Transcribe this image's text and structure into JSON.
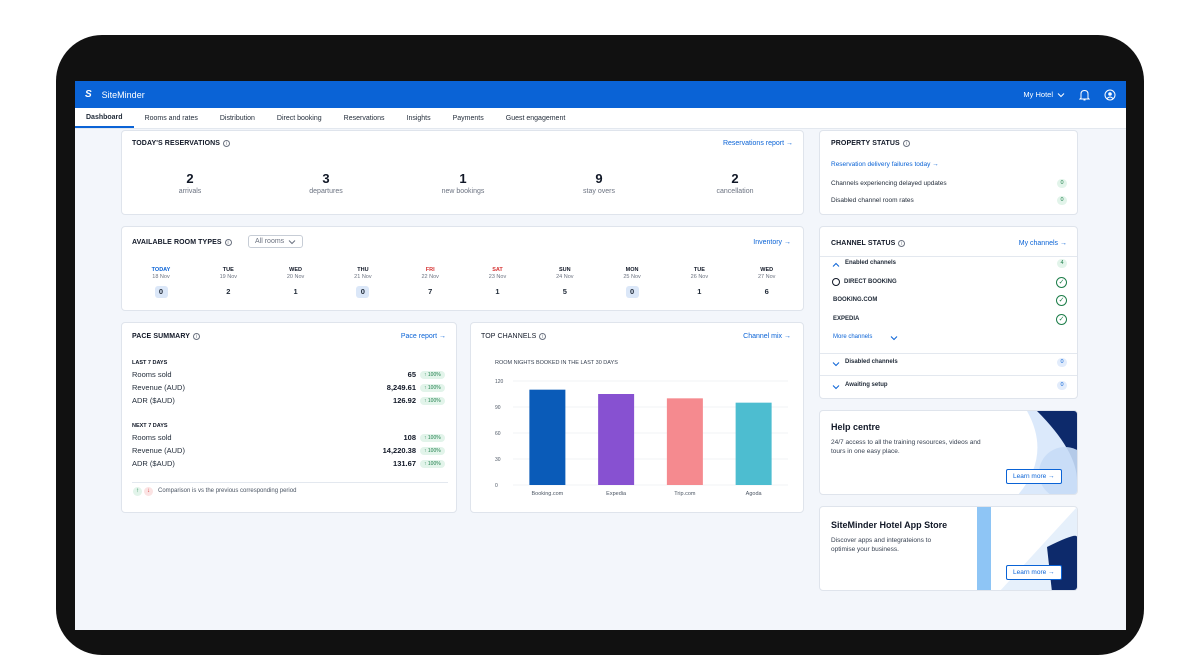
{
  "app": {
    "name": "SiteMinder",
    "logo": "S",
    "hotel_selector": "My Hotel"
  },
  "nav": {
    "tabs": [
      "Dashboard",
      "Rooms and rates",
      "Distribution",
      "Direct booking",
      "Reservations",
      "Insights",
      "Payments",
      "Guest engagement"
    ]
  },
  "reservations": {
    "title": "TODAY'S RESERVATIONS",
    "link": "Reservations report →",
    "stats": [
      {
        "value": "2",
        "label": "arrivals"
      },
      {
        "value": "3",
        "label": "departures"
      },
      {
        "value": "1",
        "label": "new bookings"
      },
      {
        "value": "9",
        "label": "stay overs"
      },
      {
        "value": "2",
        "label": "cancellation"
      }
    ]
  },
  "room_types": {
    "title": "AVAILABLE ROOM TYPES",
    "filter": "All rooms",
    "link": "Inventory →",
    "days": [
      {
        "name": "TODAY",
        "date": "18 Nov",
        "value": "0",
        "hl": true,
        "color": "#0a63d6"
      },
      {
        "name": "TUE",
        "date": "19 Nov",
        "value": "2",
        "hl": false,
        "color": "#111827"
      },
      {
        "name": "WED",
        "date": "20 Nov",
        "value": "1",
        "hl": false,
        "color": "#111827"
      },
      {
        "name": "THU",
        "date": "21 Nov",
        "value": "0",
        "hl": true,
        "color": "#111827"
      },
      {
        "name": "FRI",
        "date": "22 Nov",
        "value": "7",
        "hl": false,
        "color": "#d63333"
      },
      {
        "name": "SAT",
        "date": "23 Nov",
        "value": "1",
        "hl": false,
        "color": "#d63333"
      },
      {
        "name": "SUN",
        "date": "24 Nov",
        "value": "5",
        "hl": false,
        "color": "#111827"
      },
      {
        "name": "MON",
        "date": "25 Nov",
        "value": "0",
        "hl": true,
        "color": "#111827"
      },
      {
        "name": "TUE",
        "date": "26 Nov",
        "value": "1",
        "hl": false,
        "color": "#111827"
      },
      {
        "name": "WED",
        "date": "27 Nov",
        "value": "6",
        "hl": false,
        "color": "#111827"
      }
    ]
  },
  "pace": {
    "title": "PACE SUMMARY",
    "link": "Pace report →",
    "last_label": "LAST 7 DAYS",
    "last_rows": [
      {
        "label": "Rooms sold",
        "value": "65",
        "badge": "↑ 100%"
      },
      {
        "label": "Revenue (AUD)",
        "value": "8,249.61",
        "badge": "↑ 100%"
      },
      {
        "label": "ADR ($AUD)",
        "value": "126.92",
        "badge": "↑ 100%"
      }
    ],
    "next_label": "NEXT 7 DAYS",
    "next_rows": [
      {
        "label": "Rooms sold",
        "value": "108",
        "badge": "↑ 100%"
      },
      {
        "label": "Revenue (AUD)",
        "value": "14,220.38",
        "badge": "↑ 100%"
      },
      {
        "label": "ADR ($AUD)",
        "value": "131.67",
        "badge": "↑ 100%"
      }
    ],
    "footnote": "Comparison is vs the previous corresponding period"
  },
  "top_channels": {
    "title": "TOP CHANNELS",
    "link": "Channel mix →"
  },
  "chart_data": {
    "type": "bar",
    "title": "ROOM NIGHTS BOOKED IN THE LAST 30 DAYS",
    "categories": [
      "Booking.com",
      "Expedia",
      "Trip.com",
      "Agoda"
    ],
    "values": [
      110,
      105,
      100,
      95
    ],
    "colors": [
      "#0a5bb8",
      "#8751d1",
      "#f58a8f",
      "#4dbdd0"
    ],
    "ylim": [
      0,
      120
    ],
    "yticks": [
      "0",
      "30",
      "60",
      "90",
      "120"
    ],
    "grid": true
  },
  "property_status": {
    "title": "PROPERTY STATUS",
    "link": "Reservation delivery failures today →",
    "rows": [
      {
        "label": "Channels experiencing delayed updates",
        "count": "0"
      },
      {
        "label": "Disabled channel room rates",
        "count": "0"
      }
    ]
  },
  "channel_status": {
    "title": "CHANNEL STATUS",
    "link": "My channels →",
    "enabled_label": "Enabled channels",
    "enabled_count": "4",
    "channels": [
      "DIRECT BOOKING",
      "BOOKING.COM",
      "EXPEDIA"
    ],
    "more": "More channels",
    "disabled_label": "Disabled channels",
    "disabled_count": "0",
    "awaiting_label": "Awaiting setup",
    "awaiting_count": "0"
  },
  "help": {
    "title": "Help centre",
    "desc": "24/7 access to all the training resources, videos and tours in one easy place.",
    "button": "Learn more →"
  },
  "app_store": {
    "title": "SiteMinder Hotel App Store",
    "desc": "Discover apps and integrateions to optimise your business.",
    "button": "Learn more →"
  }
}
